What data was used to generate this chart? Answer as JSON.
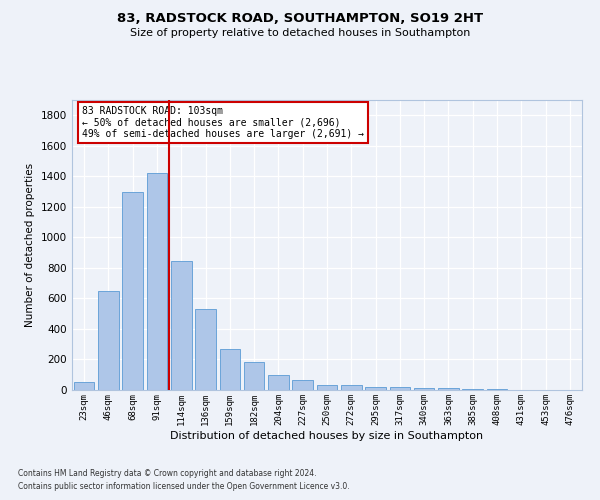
{
  "title1": "83, RADSTOCK ROAD, SOUTHAMPTON, SO19 2HT",
  "title2": "Size of property relative to detached houses in Southampton",
  "xlabel": "Distribution of detached houses by size in Southampton",
  "ylabel": "Number of detached properties",
  "bar_color": "#aec6e8",
  "bar_edge_color": "#5b9bd5",
  "categories": [
    "23sqm",
    "46sqm",
    "68sqm",
    "91sqm",
    "114sqm",
    "136sqm",
    "159sqm",
    "182sqm",
    "204sqm",
    "227sqm",
    "250sqm",
    "272sqm",
    "295sqm",
    "317sqm",
    "340sqm",
    "363sqm",
    "385sqm",
    "408sqm",
    "431sqm",
    "453sqm",
    "476sqm"
  ],
  "values": [
    50,
    650,
    1300,
    1420,
    845,
    530,
    270,
    185,
    100,
    65,
    30,
    30,
    20,
    18,
    15,
    10,
    8,
    5,
    3,
    2,
    2
  ],
  "vline_x": 3.5,
  "vline_color": "#cc0000",
  "annotation_text": "83 RADSTOCK ROAD: 103sqm\n← 50% of detached houses are smaller (2,696)\n49% of semi-detached houses are larger (2,691) →",
  "annotation_box_color": "#ffffff",
  "annotation_box_edge": "#cc0000",
  "footnote1": "Contains HM Land Registry data © Crown copyright and database right 2024.",
  "footnote2": "Contains public sector information licensed under the Open Government Licence v3.0.",
  "ylim": [
    0,
    1900
  ],
  "yticks": [
    0,
    200,
    400,
    600,
    800,
    1000,
    1200,
    1400,
    1600,
    1800
  ],
  "bg_color": "#eef2f9",
  "grid_color": "#ffffff",
  "spine_color": "#b0c4de"
}
